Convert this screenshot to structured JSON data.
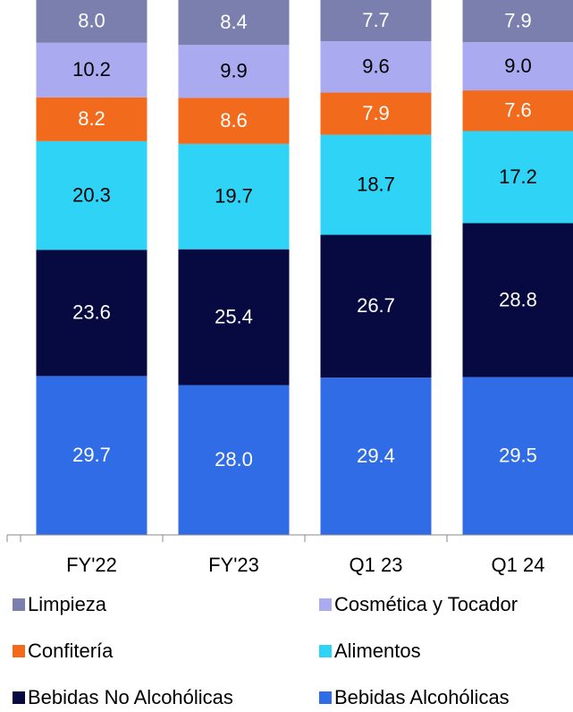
{
  "chart_data": {
    "type": "stacked_bar",
    "categories": [
      "FY'22",
      "FY'23",
      "Q1 23",
      "Q1 24"
    ],
    "ylim": [
      0,
      100
    ],
    "legend": "bottom",
    "series": [
      {
        "name": "Limpieza",
        "color": "#7b7fae",
        "label_color": "#ffffff",
        "values": [
          8.0,
          8.4,
          7.7,
          7.9
        ],
        "value_labels": [
          "8.0",
          "8.4",
          "7.7",
          "7.9"
        ]
      },
      {
        "name": "Cosmética y Tocador",
        "color": "#a9aaef",
        "label_color": "#000000",
        "values": [
          10.2,
          9.9,
          9.6,
          9.0
        ],
        "value_labels": [
          "10.2",
          "9.9",
          "9.6",
          "9.0"
        ]
      },
      {
        "name": "Confitería",
        "color": "#f26b1d",
        "label_color": "#ffffff",
        "values": [
          8.2,
          8.6,
          7.9,
          7.6
        ],
        "value_labels": [
          "8.2",
          "8.6",
          "7.9",
          "7.6"
        ]
      },
      {
        "name": "Alimentos",
        "color": "#2ed3f6",
        "label_color": "#000000",
        "values": [
          20.3,
          19.7,
          18.7,
          17.2
        ],
        "value_labels": [
          "20.3",
          "19.7",
          "18.7",
          "17.2"
        ]
      },
      {
        "name": "Bebidas No Alcohólicas",
        "color": "#060a40",
        "label_color": "#ffffff",
        "values": [
          23.6,
          25.4,
          26.7,
          28.8
        ],
        "value_labels": [
          "23.6",
          "25.4",
          "26.7",
          "28.8"
        ]
      },
      {
        "name": "Bebidas Alcohólicas",
        "color": "#2f6ce6",
        "label_color": "#ffffff",
        "values": [
          29.7,
          28.0,
          29.4,
          29.5
        ],
        "value_labels": [
          "29.7",
          "28.0",
          "29.4",
          "29.5"
        ]
      }
    ]
  }
}
